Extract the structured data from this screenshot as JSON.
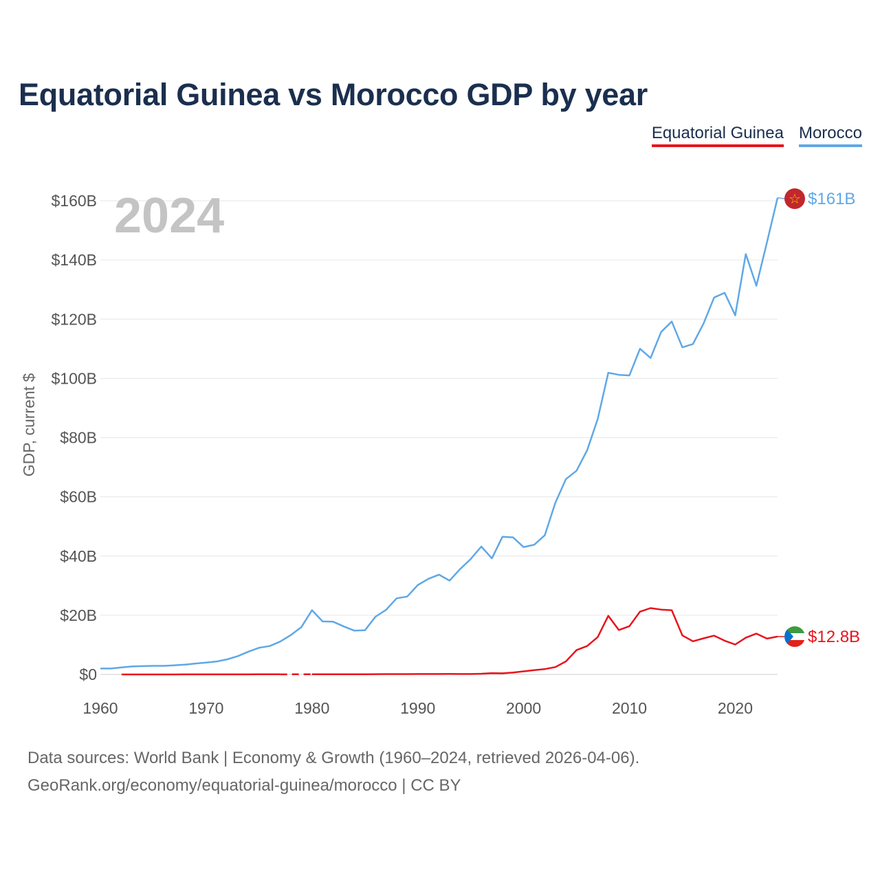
{
  "chart_data": {
    "type": "line",
    "title": "Equatorial Guinea vs Morocco GDP by year",
    "ylabel": "GDP, current $",
    "xlabel": "",
    "year_label": "2024",
    "xlim": [
      1960,
      2024
    ],
    "ylim": [
      0,
      160
    ],
    "x_ticks": [
      1960,
      1970,
      1980,
      1990,
      2000,
      2010,
      2020
    ],
    "x_tick_labels": [
      "1960",
      "1970",
      "1980",
      "1990",
      "2000",
      "2010",
      "2020"
    ],
    "y_ticks": [
      0,
      20,
      40,
      60,
      80,
      100,
      120,
      140,
      160
    ],
    "y_tick_labels": [
      "$0",
      "$20B",
      "$40B",
      "$60B",
      "$80B",
      "$100B",
      "$120B",
      "$140B",
      "$160B"
    ],
    "grid": true,
    "legend": [
      "Equatorial Guinea",
      "Morocco"
    ],
    "series": [
      {
        "name": "Morocco",
        "color": "#5fa8e6",
        "end_label": "$161B",
        "x": [
          1960,
          1961,
          1962,
          1963,
          1964,
          1965,
          1966,
          1967,
          1968,
          1969,
          1970,
          1971,
          1972,
          1973,
          1974,
          1975,
          1976,
          1977,
          1978,
          1979,
          1980,
          1981,
          1982,
          1983,
          1984,
          1985,
          1986,
          1987,
          1988,
          1989,
          1990,
          1991,
          1992,
          1993,
          1994,
          1995,
          1996,
          1997,
          1998,
          1999,
          2000,
          2001,
          2002,
          2003,
          2004,
          2005,
          2006,
          2007,
          2008,
          2009,
          2010,
          2011,
          2012,
          2013,
          2014,
          2015,
          2016,
          2017,
          2018,
          2019,
          2020,
          2021,
          2022,
          2023,
          2024
        ],
        "values": [
          2.0,
          2.0,
          2.4,
          2.7,
          2.8,
          2.9,
          2.9,
          3.1,
          3.3,
          3.7,
          4.0,
          4.4,
          5.1,
          6.2,
          7.7,
          9.0,
          9.6,
          11.1,
          13.3,
          16.0,
          21.7,
          17.9,
          17.8,
          16.2,
          14.8,
          14.9,
          19.5,
          21.8,
          25.7,
          26.3,
          30.2,
          32.3,
          33.7,
          31.7,
          35.6,
          39.0,
          43.2,
          39.2,
          46.5,
          46.3,
          43.0,
          43.8,
          47.0,
          58.0,
          66.0,
          68.8,
          75.7,
          86.3,
          101.9,
          101.2,
          101.0,
          110.0,
          106.9,
          115.7,
          119.2,
          110.5,
          111.6,
          118.5,
          127.3,
          128.9,
          121.3,
          142.0,
          131.3,
          146.0,
          161.0
        ]
      },
      {
        "name": "Equatorial Guinea",
        "color": "#e8131b",
        "end_label": "$12.8B",
        "x": [
          1962,
          1963,
          1964,
          1965,
          1966,
          1967,
          1968,
          1969,
          1970,
          1971,
          1972,
          1973,
          1974,
          1975,
          1976,
          1977,
          1978,
          1979,
          1980,
          1981,
          1982,
          1983,
          1984,
          1985,
          1986,
          1987,
          1988,
          1989,
          1990,
          1991,
          1992,
          1993,
          1994,
          1995,
          1996,
          1997,
          1998,
          1999,
          2000,
          2001,
          2002,
          2003,
          2004,
          2005,
          2006,
          2007,
          2008,
          2009,
          2010,
          2011,
          2012,
          2013,
          2014,
          2015,
          2016,
          2017,
          2018,
          2019,
          2020,
          2021,
          2022,
          2023,
          2024
        ],
        "values": [
          0.01,
          0.01,
          0.01,
          0.01,
          0.01,
          0.01,
          0.02,
          0.02,
          0.02,
          0.02,
          0.02,
          0.03,
          0.03,
          0.04,
          0.04,
          0.04,
          null,
          null,
          0.05,
          0.06,
          0.06,
          0.07,
          0.07,
          0.08,
          0.1,
          0.11,
          0.12,
          0.12,
          0.13,
          0.13,
          0.15,
          0.16,
          0.13,
          0.14,
          0.23,
          0.44,
          0.37,
          0.62,
          1.05,
          1.46,
          1.81,
          2.48,
          4.41,
          8.22,
          9.6,
          12.6,
          19.8,
          15.0,
          16.3,
          21.2,
          22.4,
          21.9,
          21.7,
          13.2,
          11.2,
          12.2,
          13.1,
          11.4,
          10.1,
          12.4,
          13.8,
          12.1,
          12.8
        ]
      }
    ]
  },
  "sources": {
    "line1": "Data sources: World Bank | Economy & Growth (1960–2024, retrieved 2026-04-06).",
    "line2": "GeoRank.org/economy/equatorial-guinea/morocco | CC BY"
  }
}
